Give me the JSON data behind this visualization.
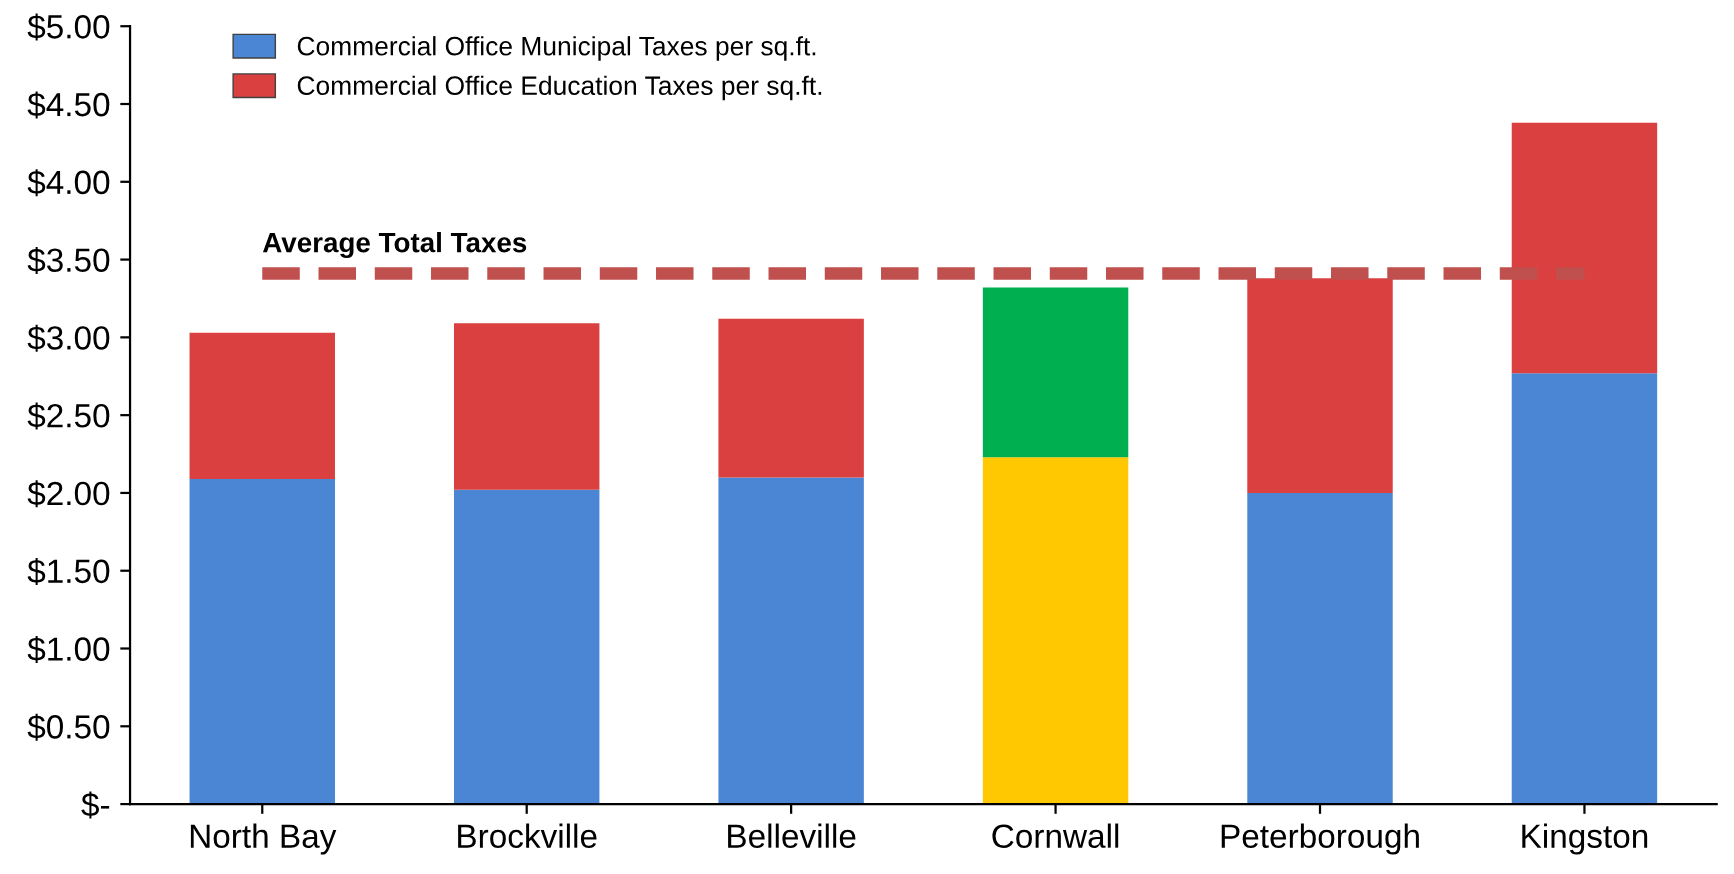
{
  "chart_data": {
    "type": "bar",
    "stacked": true,
    "categories": [
      "North Bay",
      "Brockville",
      "Belleville",
      "Cornwall",
      "Peterborough",
      "Kingston"
    ],
    "series": [
      {
        "name": "Commercial Office Municipal Taxes per sq.ft.",
        "color": "#4a86d4",
        "colors": [
          "#4a86d4",
          "#4a86d4",
          "#4a86d4",
          "#ffc800",
          "#4a86d4",
          "#4a86d4"
        ],
        "values": [
          2.09,
          2.02,
          2.1,
          2.23,
          2.0,
          2.77
        ]
      },
      {
        "name": "Commercial Office Education Taxes per sq.ft.",
        "color": "#d9403f",
        "colors": [
          "#d9403f",
          "#d9403f",
          "#d9403f",
          "#00b050",
          "#d9403f",
          "#d9403f"
        ],
        "values": [
          0.94,
          1.07,
          1.02,
          1.09,
          1.38,
          1.61
        ]
      }
    ],
    "ylim": [
      0,
      5
    ],
    "yticks": [
      {
        "value": 0,
        "label": "$-"
      },
      {
        "value": 0.5,
        "label": "$0.50"
      },
      {
        "value": 1,
        "label": "$1.00"
      },
      {
        "value": 1.5,
        "label": "$1.50"
      },
      {
        "value": 2,
        "label": "$2.00"
      },
      {
        "value": 2.5,
        "label": "$2.50"
      },
      {
        "value": 3,
        "label": "$3.00"
      },
      {
        "value": 3.5,
        "label": "$3.50"
      },
      {
        "value": 4,
        "label": "$4.00"
      },
      {
        "value": 4.5,
        "label": "$4.50"
      },
      {
        "value": 5,
        "label": "$5.00"
      }
    ],
    "ref_lines": [
      {
        "axis": "y",
        "value": 3.41,
        "label": "Average Total Taxes",
        "color": "#c0504d",
        "line_style": "dashed"
      }
    ],
    "grid": false,
    "legend": "top left"
  }
}
